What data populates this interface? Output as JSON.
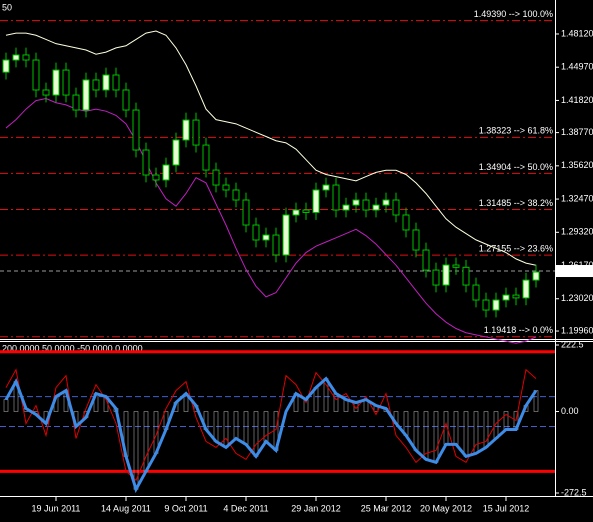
{
  "chart_data": [
    {
      "type": "candlestick",
      "title": "50",
      "categories": [
        null,
        null,
        null,
        null,
        null,
        "19 Jun 2011",
        null,
        null,
        null,
        null,
        null,
        null,
        "14 Aug 2011",
        null,
        null,
        null,
        null,
        null,
        "9 Oct 2011",
        null,
        null,
        null,
        null,
        null,
        "4 Dec 2011",
        null,
        null,
        null,
        null,
        null,
        null,
        "29 Jan 2012",
        null,
        null,
        null,
        null,
        null,
        null,
        "25 Mar 2012",
        null,
        null,
        null,
        null,
        null,
        "20 May 2012",
        null,
        null,
        null,
        null,
        null,
        "15 Jul 2012",
        null,
        null,
        null
      ],
      "open": [
        1.445,
        1.4565,
        1.4613,
        1.4565,
        1.4281,
        1.4233,
        1.447,
        1.4233,
        1.4091,
        1.4376,
        1.4281,
        1.4423,
        1.4281,
        1.4091,
        1.3712,
        1.3475,
        1.3428,
        1.357,
        1.3807,
        1.3996,
        1.3759,
        1.3522,
        1.338,
        1.3333,
        1.3238,
        1.3001,
        1.2859,
        1.2906,
        1.2717,
        1.3096,
        1.3143,
        1.312,
        1.3333,
        1.338,
        1.3143,
        1.319,
        1.3238,
        1.3143,
        1.319,
        1.3238,
        1.3096,
        1.2954,
        1.2764,
        1.2574,
        1.2432,
        1.2622,
        1.26,
        1.2432,
        1.229,
        1.2195,
        1.229,
        1.2337,
        1.231,
        1.2479
      ],
      "high": [
        1.4635,
        1.4683,
        1.4683,
        1.4635,
        1.4351,
        1.454,
        1.454,
        1.4303,
        1.4446,
        1.4446,
        1.4493,
        1.4493,
        1.4351,
        1.4161,
        1.3782,
        1.3545,
        1.364,
        1.3877,
        1.4066,
        1.4066,
        1.3829,
        1.3592,
        1.345,
        1.3403,
        1.3308,
        1.3071,
        1.2976,
        1.2976,
        1.3166,
        1.3213,
        1.3213,
        1.3403,
        1.345,
        1.345,
        1.326,
        1.3308,
        1.3308,
        1.326,
        1.3308,
        1.3308,
        1.3166,
        1.3024,
        1.2834,
        1.2644,
        1.2692,
        1.2692,
        1.267,
        1.2502,
        1.236,
        1.236,
        1.2407,
        1.2407,
        1.2549,
        1.2625
      ],
      "low": [
        1.438,
        1.4495,
        1.4495,
        1.4211,
        1.4163,
        1.4163,
        1.4163,
        1.4021,
        1.4021,
        1.4211,
        1.4211,
        1.4211,
        1.4021,
        1.3642,
        1.3405,
        1.3358,
        1.3358,
        1.35,
        1.3737,
        1.3689,
        1.3452,
        1.331,
        1.3263,
        1.3168,
        1.2931,
        1.2789,
        1.2789,
        1.2647,
        1.2647,
        1.3026,
        1.305,
        1.305,
        1.3263,
        1.3073,
        1.3073,
        1.312,
        1.3073,
        1.3073,
        1.312,
        1.3026,
        1.2884,
        1.2694,
        1.2504,
        1.2362,
        1.2362,
        1.253,
        1.2362,
        1.222,
        1.2125,
        1.2125,
        1.222,
        1.224,
        1.224,
        1.2409
      ],
      "close": [
        1.4565,
        1.4613,
        1.4565,
        1.4281,
        1.4233,
        1.447,
        1.4233,
        1.4091,
        1.4376,
        1.4281,
        1.4423,
        1.4281,
        1.4091,
        1.3712,
        1.3475,
        1.3428,
        1.357,
        1.3807,
        1.3996,
        1.3759,
        1.3522,
        1.338,
        1.3333,
        1.3238,
        1.3001,
        1.2859,
        1.2906,
        1.2717,
        1.3096,
        1.3143,
        1.312,
        1.3333,
        1.338,
        1.3143,
        1.319,
        1.3238,
        1.3143,
        1.319,
        1.3238,
        1.3096,
        1.2954,
        1.2764,
        1.2574,
        1.2432,
        1.2622,
        1.26,
        1.2432,
        1.229,
        1.2195,
        1.229,
        1.2337,
        1.231,
        1.2479,
        1.2555
      ],
      "up_color": "#e6ffd0",
      "down_color": "#000000",
      "wick_color": "#00c000",
      "overlays": [
        {
          "color": "#ffffe0",
          "values": [
            1.48,
            1.482,
            1.482,
            1.48,
            1.476,
            1.472,
            1.47,
            1.468,
            1.466,
            1.462,
            1.464,
            1.468,
            1.47,
            1.476,
            1.482,
            1.484,
            1.48,
            1.468,
            1.452,
            1.432,
            1.41,
            1.4,
            1.398,
            1.396,
            1.392,
            1.388,
            1.384,
            1.38,
            1.378,
            1.372,
            1.362,
            1.352,
            1.348,
            1.346,
            1.344,
            1.342,
            1.346,
            1.35,
            1.352,
            1.352,
            1.348,
            1.34,
            1.33,
            1.318,
            1.306,
            1.298,
            1.292,
            1.286,
            1.282,
            1.278,
            1.274,
            1.268,
            1.264,
            1.262
          ]
        },
        {
          "color": "#c020c0",
          "values": [
            1.392,
            1.4,
            1.41,
            1.418,
            1.42,
            1.416,
            1.414,
            1.41,
            1.408,
            1.41,
            1.408,
            1.404,
            1.396,
            1.38,
            1.36,
            1.34,
            1.325,
            1.318,
            1.33,
            1.345,
            1.34,
            1.32,
            1.3,
            1.278,
            1.258,
            1.242,
            1.232,
            1.236,
            1.25,
            1.264,
            1.274,
            1.28,
            1.284,
            1.288,
            1.292,
            1.296,
            1.29,
            1.282,
            1.272,
            1.262,
            1.25,
            1.238,
            1.226,
            1.216,
            1.208,
            1.202,
            1.198,
            1.196,
            1.194,
            1.192,
            1.19,
            1.188,
            1.19,
            1.194
          ]
        }
      ],
      "fib_color": "#e01010",
      "fib_levels": [
        {
          "value": 1.4939,
          "label": "1.49390 --> 100.0%"
        },
        {
          "value": 1.38323,
          "label": "1.38323 --> 61.8%"
        },
        {
          "value": 1.34904,
          "label": "1.34904 --> 50.0%"
        },
        {
          "value": 1.31485,
          "label": "1.31485 --> 38.2%"
        },
        {
          "value": 1.27155,
          "label": "1.27155 --> 23.6%"
        },
        {
          "value": 1.19418,
          "label": "1.19418 --> 0.0%"
        }
      ],
      "current_price": {
        "value": 1.2565,
        "label": "1.25650"
      },
      "ylim": [
        1.193,
        1.5134
      ],
      "yticks": [
        {
          "value": 1.4812,
          "label": "1.48120"
        },
        {
          "value": 1.4497,
          "label": "1.44970"
        },
        {
          "value": 1.4182,
          "label": "1.41820"
        },
        {
          "value": 1.3877,
          "label": "1.38770"
        },
        {
          "value": 1.3562,
          "label": "1.35620"
        },
        {
          "value": 1.3247,
          "label": "1.32470"
        },
        {
          "value": 1.2932,
          "label": "1.29320"
        },
        {
          "value": 1.2617,
          "label": "1.26170"
        },
        {
          "value": 1.2302,
          "label": "1.23020"
        },
        {
          "value": 1.1996,
          "label": "1.19960"
        }
      ]
    },
    {
      "type": "line",
      "title": "200.0000 50.0000 -50.0000 0.0000",
      "ylim": [
        -272.5,
        222.5
      ],
      "yticks": [
        222.5,
        {
          "value": 0,
          "label": "0.00"
        },
        -272.5
      ],
      "levels": [
        {
          "value": 200,
          "color": "#ff0000"
        },
        {
          "value": 50,
          "color": "#4060d0"
        },
        {
          "value": -50,
          "color": "#4060d0"
        },
        {
          "value": -200,
          "color": "#ff0000"
        }
      ],
      "histogram_color": "#a0a0a0",
      "series": [
        {
          "color": "#3c8ce8",
          "values": [
            40,
            100,
            10,
            -10,
            -40,
            50,
            70,
            -50,
            -20,
            60,
            50,
            10,
            -150,
            -260,
            -200,
            -140,
            -60,
            30,
            60,
            20,
            -60,
            -100,
            -120,
            -90,
            -110,
            -150,
            -100,
            -130,
            0,
            60,
            40,
            80,
            110,
            60,
            40,
            30,
            40,
            20,
            10,
            -40,
            -80,
            -130,
            -160,
            -170,
            -110,
            -110,
            -150,
            -140,
            -120,
            -90,
            -60,
            -60,
            20,
            70
          ]
        },
        {
          "color": "#e00000",
          "values": [
            80,
            140,
            -40,
            20,
            -80,
            80,
            120,
            -90,
            10,
            90,
            40,
            -40,
            -200,
            -230,
            -150,
            -80,
            10,
            70,
            100,
            -20,
            -100,
            -120,
            -90,
            -140,
            -160,
            -110,
            -80,
            -60,
            120,
            90,
            30,
            130,
            90,
            40,
            60,
            10,
            50,
            -10,
            60,
            -80,
            -120,
            -170,
            -140,
            -130,
            -40,
            -150,
            -170,
            -110,
            -100,
            -40,
            -10,
            -30,
            140,
            110
          ]
        }
      ]
    }
  ]
}
